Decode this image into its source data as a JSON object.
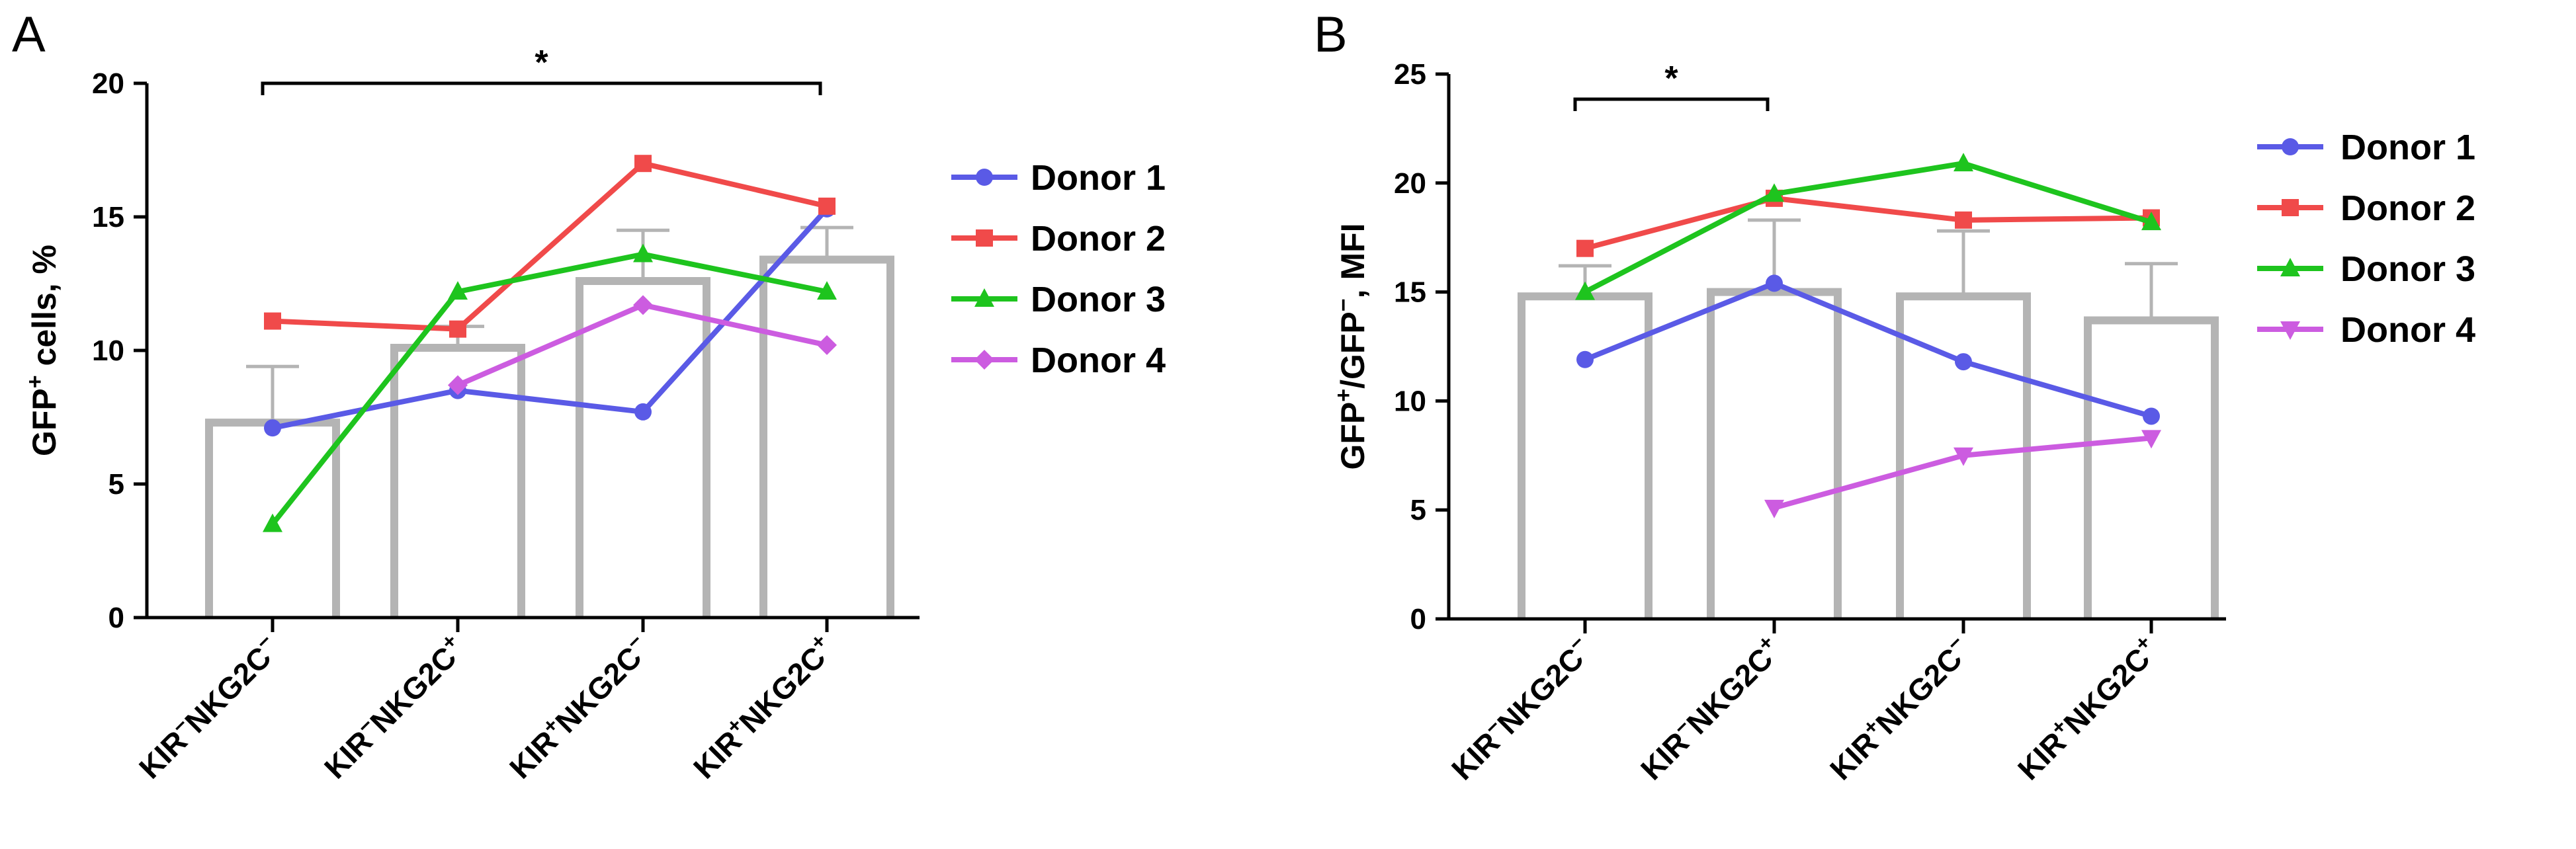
{
  "chart_data": [
    {
      "type": "bar",
      "panel": "A",
      "title": "",
      "xlabel": "",
      "ylabel_main": "GFP",
      "ylabel_sup": "+",
      "ylabel_rest": " cells, %",
      "ylim": [
        0,
        20
      ],
      "yticks": [
        0,
        5,
        10,
        15,
        20
      ],
      "categories": [
        {
          "base1": "KIR",
          "sup1": "−",
          "base2": "NKG2C",
          "sup2": "−"
        },
        {
          "base1": "KIR",
          "sup1": "−",
          "base2": "NKG2C",
          "sup2": "+"
        },
        {
          "base1": "KIR",
          "sup1": "+",
          "base2": "NKG2C",
          "sup2": "−"
        },
        {
          "base1": "KIR",
          "sup1": "+",
          "base2": "NKG2C",
          "sup2": "+"
        }
      ],
      "bars": [
        7.3,
        10.1,
        12.6,
        13.4
      ],
      "errors": [
        2.1,
        0.8,
        1.9,
        1.2
      ],
      "series": [
        {
          "name": "Donor 1",
          "color": "#5a5ae6",
          "marker": "circle",
          "values": [
            7.1,
            8.5,
            7.7,
            15.3
          ]
        },
        {
          "name": "Donor 2",
          "color": "#f04a4a",
          "marker": "square",
          "values": [
            11.1,
            10.8,
            17.0,
            15.4
          ]
        },
        {
          "name": "Donor 3",
          "color": "#1ec41e",
          "marker": "triangle-up",
          "values": [
            3.5,
            12.2,
            13.6,
            12.2
          ]
        },
        {
          "name": "Donor 4",
          "color": "#cc5ce0",
          "marker": "diamond",
          "values": [
            null,
            8.7,
            11.7,
            10.2
          ]
        }
      ],
      "significance": [
        {
          "from": 0,
          "to": 3,
          "label": "*"
        }
      ],
      "legend_position": "right"
    },
    {
      "type": "bar",
      "panel": "B",
      "title": "",
      "xlabel": "",
      "ylabel_main": "GFP",
      "ylabel_sup": "+",
      "ylabel_mid": "/GFP",
      "ylabel_sup2": "−",
      "ylabel_rest": ", MFI",
      "ylim": [
        0,
        25
      ],
      "yticks": [
        0,
        5,
        10,
        15,
        20,
        25
      ],
      "categories": [
        {
          "base1": "KIR",
          "sup1": "−",
          "base2": "NKG2C",
          "sup2": "−"
        },
        {
          "base1": "KIR",
          "sup1": "−",
          "base2": "NKG2C",
          "sup2": "+"
        },
        {
          "base1": "KIR",
          "sup1": "+",
          "base2": "NKG2C",
          "sup2": "−"
        },
        {
          "base1": "KIR",
          "sup1": "+",
          "base2": "NKG2C",
          "sup2": "+"
        }
      ],
      "bars": [
        14.8,
        15.0,
        14.8,
        13.7
      ],
      "errors": [
        1.4,
        3.3,
        3.0,
        2.6
      ],
      "series": [
        {
          "name": "Donor 1",
          "color": "#5a5ae6",
          "marker": "circle",
          "values": [
            11.9,
            15.4,
            11.8,
            9.3
          ]
        },
        {
          "name": "Donor 2",
          "color": "#f04a4a",
          "marker": "square",
          "values": [
            17.0,
            19.3,
            18.3,
            18.4
          ]
        },
        {
          "name": "Donor 3",
          "color": "#1ec41e",
          "marker": "triangle-up",
          "values": [
            15.0,
            19.5,
            20.9,
            18.2
          ]
        },
        {
          "name": "Donor 4",
          "color": "#cc5ce0",
          "marker": "triangle-down",
          "values": [
            null,
            5.1,
            7.5,
            8.3
          ]
        }
      ],
      "significance": [
        {
          "from": 0,
          "to": 1,
          "label": "*"
        }
      ],
      "legend_position": "right"
    }
  ]
}
